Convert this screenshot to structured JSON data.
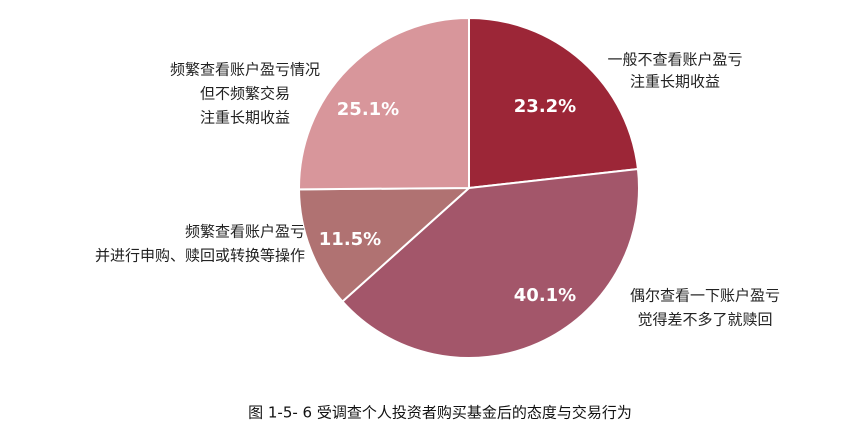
{
  "chart_data": {
    "type": "pie",
    "title": "图 1-5- 6 受调查个人投资者购买基金后的态度与交易行为",
    "categories": [
      [
        "一般不查看账户盈亏",
        "注重长期收益"
      ],
      [
        "偶尔查看一下账户盈亏",
        "觉得差不多了就赎回"
      ],
      [
        "频繁查看账户盈亏",
        "并进行申购、赎回或转换等操作"
      ],
      [
        "频繁查看账户盈亏情况",
        "但不频繁交易",
        "注重长期收益"
      ]
    ],
    "values": [
      23.2,
      40.1,
      11.5,
      25.1
    ],
    "value_labels": [
      "23.2%",
      "40.1%",
      "11.5%",
      "25.1%"
    ],
    "colors": [
      "#9c2637",
      "#a3566a",
      "#b07272",
      "#d8969b"
    ]
  }
}
